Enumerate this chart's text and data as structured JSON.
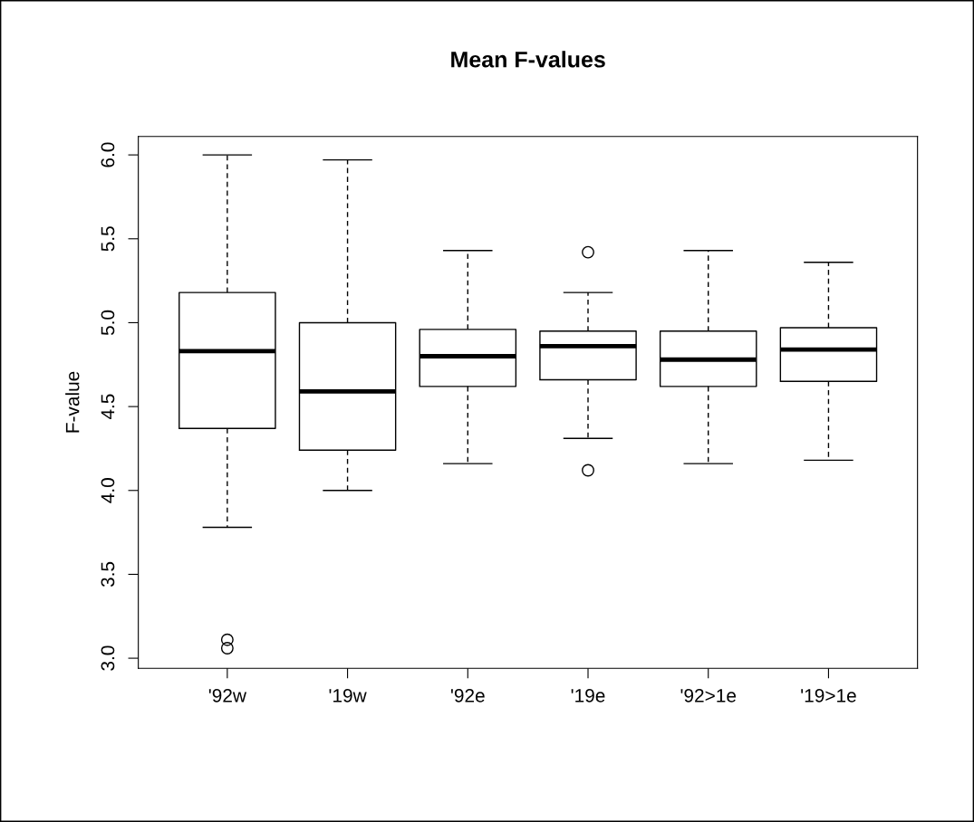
{
  "chart_data": {
    "type": "box",
    "title": "Mean F-values",
    "ylabel": "F-value",
    "categories": [
      "'92w",
      "'19w",
      "'92e",
      "'19e",
      "'92>1e",
      "'19>1e"
    ],
    "boxes": [
      {
        "low": 3.78,
        "q1": 4.37,
        "median": 4.83,
        "q3": 5.18,
        "high": 6.0,
        "outliers": [
          3.11,
          3.06
        ]
      },
      {
        "low": 4.0,
        "q1": 4.24,
        "median": 4.59,
        "q3": 5.0,
        "high": 5.97
      },
      {
        "low": 4.16,
        "q1": 4.62,
        "median": 4.8,
        "q3": 4.96,
        "high": 5.43
      },
      {
        "low": 4.31,
        "q1": 4.66,
        "median": 4.86,
        "q3": 4.95,
        "high": 5.18,
        "outliers": [
          5.42,
          4.12
        ]
      },
      {
        "low": 4.16,
        "q1": 4.62,
        "median": 4.78,
        "q3": 4.95,
        "high": 5.43
      },
      {
        "low": 4.18,
        "q1": 4.65,
        "median": 4.84,
        "q3": 4.97,
        "high": 5.36
      }
    ],
    "ylim": [
      2.94,
      6.11
    ],
    "yticks": [
      {
        "value": 3,
        "label": "3.0"
      },
      {
        "value": 3.5,
        "label": "3.5"
      },
      {
        "value": 4,
        "label": "4.0"
      },
      {
        "value": 4.5,
        "label": "4.5"
      },
      {
        "value": 5,
        "label": "5.0"
      },
      {
        "value": 5.5,
        "label": "5.5"
      },
      {
        "value": 6,
        "label": "6.0"
      }
    ],
    "grid": false,
    "legend": false
  }
}
